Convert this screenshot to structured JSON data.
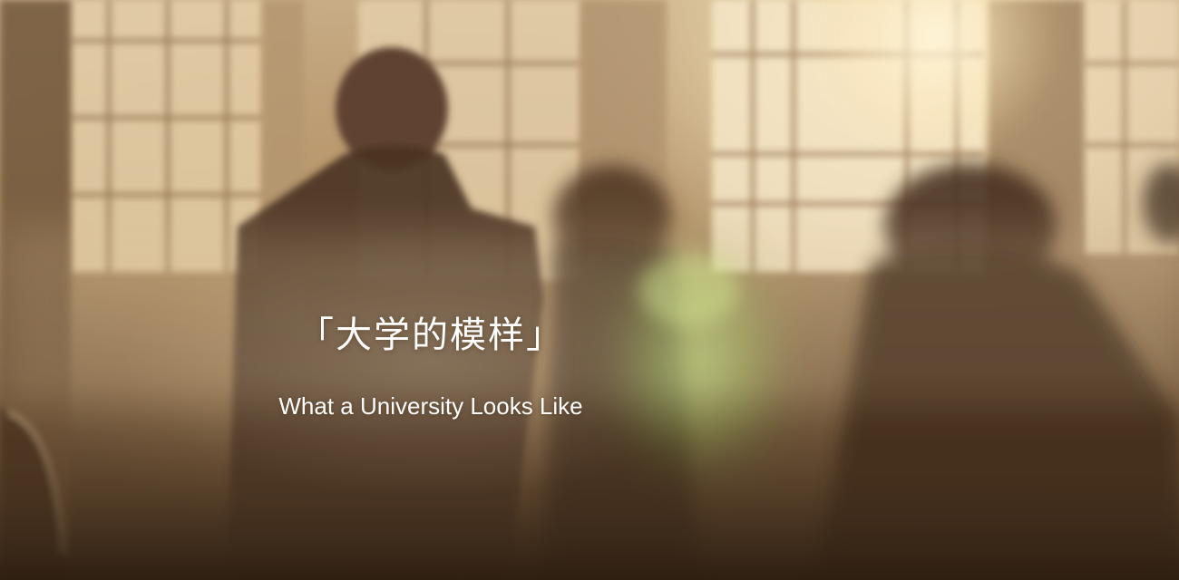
{
  "hero": {
    "title": "「大学的模样」",
    "subtitle": "What a University Looks Like",
    "background_image": "sunlit lecture hall with students seated in front of lattice windows"
  },
  "colors": {
    "text": "#ffffff",
    "warm_light": "#f3dcae",
    "shadow": "#3a2818",
    "flare_green": "#9fd36a"
  }
}
